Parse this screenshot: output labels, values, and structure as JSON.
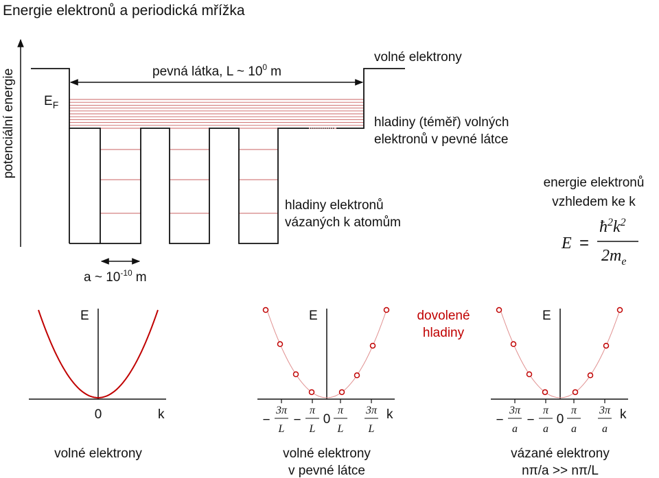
{
  "title": "Energie elektronů a periodická mřížka",
  "potential_diagram": {
    "axis_label": "potenciální energie",
    "fermi_level": {
      "symbol": "E",
      "subscript": "F"
    },
    "solid_size": {
      "text": "pevná látka, L ~ 10",
      "exponent": "0",
      "unit": "m"
    },
    "free_electrons": "volné elektrony",
    "quasi_free_levels": [
      "hladiny (téměř) volných",
      "elektronů v pevné látce"
    ],
    "bound_levels": [
      "hladiny elektronů",
      "vázaných k atomům"
    ],
    "lattice_constant": {
      "text": "a ~ 10",
      "exponent": "-10",
      "unit": "m"
    }
  },
  "dispersion": {
    "caption": [
      "energie elektronů",
      "vzhledem ke k"
    ],
    "formula": {
      "lhs": "E",
      "equals": "=",
      "hbar": "ħ",
      "hbar_exponent": "2",
      "k": "k",
      "k_exponent": "2",
      "denominator": "2m",
      "denominator_subscript": "e"
    }
  },
  "panels": [
    {
      "axis_e": "E",
      "origin": "0",
      "axis_k": "k",
      "caption": [
        "volné elektrony"
      ]
    },
    {
      "axis_e": "E",
      "origin": "0",
      "axis_k": "k",
      "caption": [
        "volné elektrony",
        "v pevné látce"
      ],
      "ticks": [
        {
          "sign": "−",
          "num": "3π",
          "den": "L"
        },
        {
          "sign": "−",
          "num": "π",
          "den": "L"
        },
        {
          "num": "π",
          "den": "L"
        },
        {
          "num": "3π",
          "den": "L"
        }
      ],
      "annotation": [
        "dovolené",
        "hladiny"
      ]
    },
    {
      "axis_e": "E",
      "origin": "0",
      "axis_k": "k",
      "caption": [
        "vázané elektrony",
        "nπ/a >> nπ/L"
      ],
      "ticks": [
        {
          "sign": "−",
          "num": "3π",
          "den": "a"
        },
        {
          "sign": "−",
          "num": "π",
          "den": "a"
        },
        {
          "num": "π",
          "den": "a"
        },
        {
          "num": "3π",
          "den": "a"
        }
      ]
    }
  ]
}
